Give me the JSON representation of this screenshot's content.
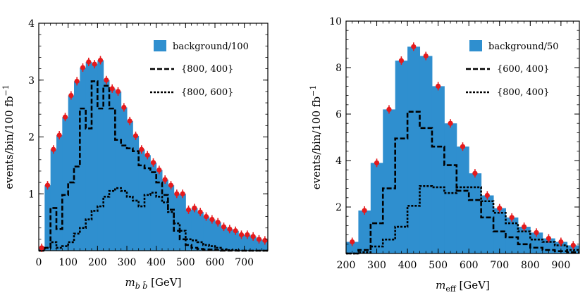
{
  "chart_data": [
    {
      "type": "histogram",
      "ylabel": "events/bin/100 fb",
      "ylabel_sup": "−1",
      "xlabel_main": "m",
      "xlabel_sub": "b b̄",
      "xlabel_unit": "[GeV]",
      "xlim": [
        0,
        780
      ],
      "ylim": [
        0,
        4
      ],
      "xticks": [
        0,
        100,
        200,
        300,
        400,
        500,
        600,
        700
      ],
      "yticks": [
        1,
        2,
        3,
        4
      ],
      "bin_edges": [
        0,
        20,
        40,
        60,
        80,
        100,
        120,
        140,
        160,
        180,
        200,
        220,
        240,
        260,
        280,
        300,
        320,
        340,
        360,
        380,
        400,
        420,
        440,
        460,
        480,
        500,
        520,
        540,
        560,
        580,
        600,
        620,
        640,
        660,
        680,
        700,
        720,
        740,
        760,
        780
      ],
      "background": {
        "name": "background/100",
        "color": "#2f8fcf",
        "values": [
          0.05,
          1.15,
          1.78,
          2.03,
          2.35,
          2.73,
          2.98,
          3.22,
          3.32,
          3.28,
          3.35,
          3.0,
          2.85,
          2.8,
          2.52,
          2.28,
          2.02,
          1.78,
          1.68,
          1.55,
          1.42,
          1.25,
          1.15,
          1.0,
          1.0,
          0.72,
          0.75,
          0.68,
          0.6,
          0.55,
          0.5,
          0.42,
          0.38,
          0.35,
          0.28,
          0.28,
          0.25,
          0.2,
          0.18
        ]
      },
      "series": [
        {
          "name": "{800, 400}",
          "style": "dashed",
          "values": [
            0.0,
            0.05,
            0.75,
            0.38,
            0.98,
            1.2,
            1.48,
            2.5,
            2.15,
            2.98,
            2.5,
            2.9,
            2.5,
            1.95,
            1.85,
            1.8,
            1.75,
            1.5,
            1.45,
            1.38,
            1.2,
            0.98,
            0.72,
            0.35,
            0.2,
            0.1,
            0.05,
            0.03,
            0.02,
            0.02,
            0.01,
            0.0,
            0.0,
            0.0,
            0.0,
            0.0,
            0.0,
            0.0,
            0.0
          ]
        },
        {
          "name": "{800, 600}",
          "style": "dotted",
          "values": [
            0.0,
            0.05,
            0.15,
            0.05,
            0.08,
            0.15,
            0.3,
            0.4,
            0.55,
            0.7,
            0.78,
            0.95,
            1.05,
            1.1,
            1.05,
            0.95,
            0.88,
            0.78,
            0.98,
            1.02,
            0.95,
            0.85,
            0.68,
            0.48,
            0.35,
            0.2,
            0.18,
            0.15,
            0.1,
            0.08,
            0.05,
            0.02,
            0.01,
            0.01,
            0.0,
            0.0,
            0.0,
            0.0,
            0.0
          ]
        }
      ]
    },
    {
      "type": "histogram",
      "ylabel": "events/bin/100 fb",
      "ylabel_sup": "−1",
      "xlabel_main": "m",
      "xlabel_sub": "eff",
      "xlabel_unit": "[GeV]",
      "xlim": [
        200,
        960
      ],
      "ylim": [
        0,
        10
      ],
      "xticks": [
        200,
        300,
        400,
        500,
        600,
        700,
        800,
        900
      ],
      "yticks": [
        2,
        4,
        6,
        8,
        10
      ],
      "bin_edges": [
        200,
        240,
        280,
        320,
        360,
        400,
        440,
        480,
        520,
        560,
        600,
        640,
        680,
        720,
        760,
        800,
        840,
        880,
        920,
        960
      ],
      "background": {
        "name": "background/50",
        "color": "#2f8fcf",
        "values": [
          0.5,
          1.85,
          3.9,
          6.2,
          8.3,
          8.9,
          8.5,
          7.2,
          5.6,
          4.6,
          3.45,
          2.5,
          1.95,
          1.55,
          1.15,
          0.9,
          0.65,
          0.5,
          0.35
        ]
      },
      "series": [
        {
          "name": "{600, 400}",
          "style": "dashed",
          "values": [
            0.0,
            0.15,
            1.3,
            2.8,
            4.95,
            6.1,
            5.4,
            4.6,
            3.8,
            2.7,
            2.3,
            1.55,
            0.95,
            0.7,
            0.4,
            0.25,
            0.15,
            0.1,
            0.05
          ]
        },
        {
          "name": "{800, 400}",
          "style": "dotted",
          "values": [
            0.0,
            0.05,
            0.3,
            0.6,
            1.15,
            2.05,
            2.9,
            2.85,
            2.6,
            2.85,
            2.85,
            2.25,
            1.75,
            1.3,
            0.95,
            0.6,
            0.5,
            0.35,
            0.15
          ]
        }
      ]
    }
  ]
}
